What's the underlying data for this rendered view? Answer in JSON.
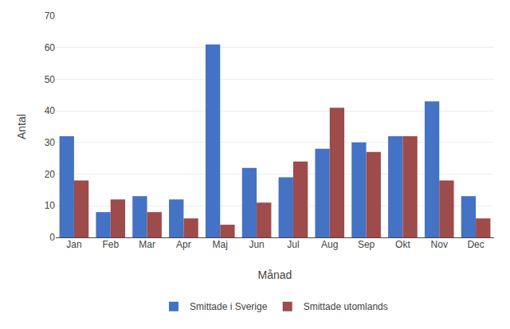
{
  "chart_data": {
    "type": "bar",
    "xlabel": "Månad",
    "ylabel": "Antal",
    "categories": [
      "Jan",
      "Feb",
      "Mar",
      "Apr",
      "Maj",
      "Jun",
      "Jul",
      "Aug",
      "Sep",
      "Okt",
      "Nov",
      "Dec"
    ],
    "series": [
      {
        "name": "Smittade i Sverige",
        "color": "#4472C4",
        "values": [
          32,
          8,
          13,
          12,
          61,
          22,
          19,
          28,
          30,
          32,
          43,
          13
        ]
      },
      {
        "name": "Smittade utomlands",
        "color": "#9E4B4B",
        "values": [
          18,
          12,
          8,
          6,
          4,
          11,
          24,
          41,
          27,
          32,
          18,
          6
        ]
      }
    ],
    "ylim": [
      0,
      70
    ],
    "yticks": [
      0,
      10,
      20,
      30,
      40,
      50,
      60,
      70
    ],
    "grid": true,
    "legend": "bottom"
  }
}
